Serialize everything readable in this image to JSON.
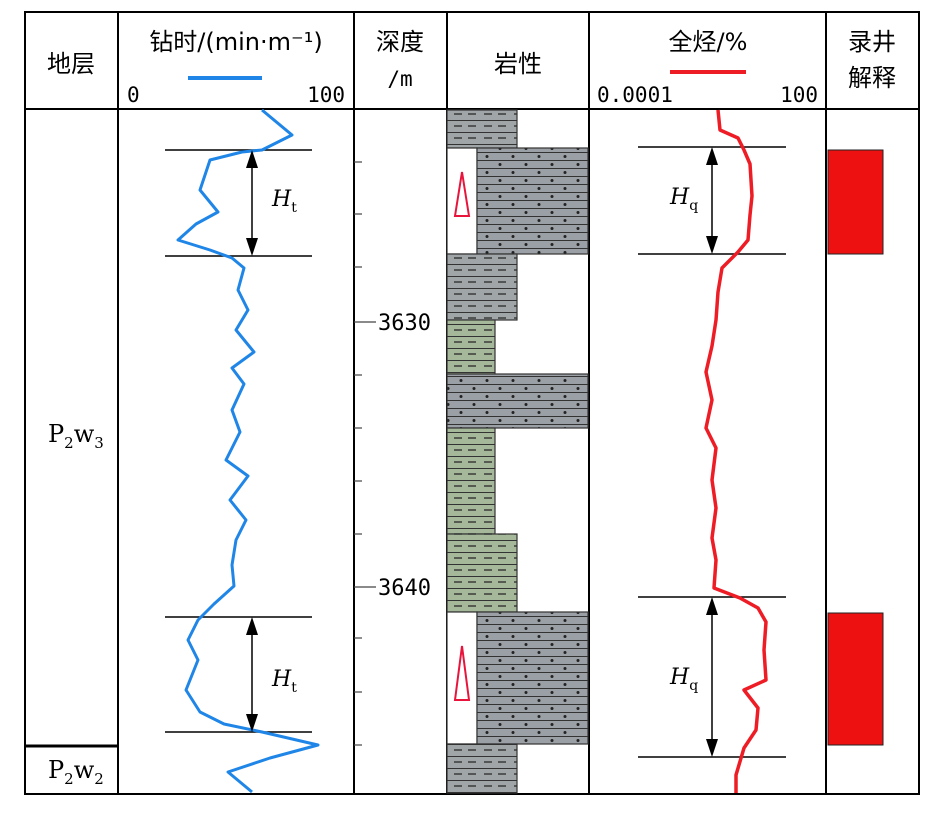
{
  "headers": {
    "formation": "地层",
    "drill_time": "钻时/(min·m⁻¹)",
    "drill_time_min": "0",
    "drill_time_max": "100",
    "depth_line1": "深度",
    "depth_line2": "/m",
    "lithology": "岩性",
    "total_gas": "全烃/%",
    "gas_min": "0.0001",
    "gas_max": "100",
    "interp_line1": "录井",
    "interp_line2": "解释"
  },
  "strata": [
    {
      "main": "P",
      "sub1": "2",
      "letter": "w",
      "sub2": "3"
    },
    {
      "main": "P",
      "sub1": "2",
      "letter": "w",
      "sub2": "2"
    }
  ],
  "depth_labels": [
    "3630",
    "3640"
  ],
  "markers": {
    "ht_letter": "H",
    "ht_sub": "t",
    "hq_letter": "H",
    "hq_sub": "q"
  },
  "colors": {
    "drill_time_curve": "#1f86e8",
    "gas_curve": "#ee1c25",
    "interp_box": "#ee1111",
    "mudstone": "#a6b89a",
    "sandstone": "#9aa0a6"
  }
}
